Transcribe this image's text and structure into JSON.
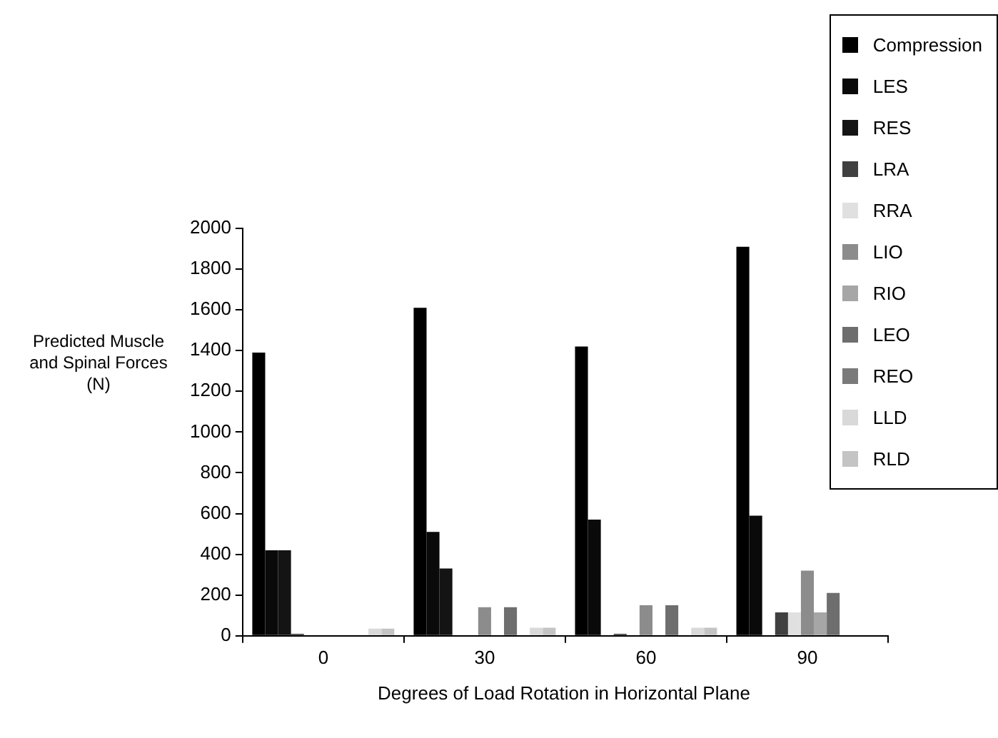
{
  "chart_data": {
    "type": "bar",
    "xlabel": "Degrees of Load Rotation in Horizontal Plane",
    "ylabel": "Predicted Muscle and Spinal Forces (N)",
    "categories": [
      "0",
      "30",
      "60",
      "90"
    ],
    "ylim": [
      0,
      2000
    ],
    "yticks": [
      0,
      200,
      400,
      600,
      800,
      1000,
      1200,
      1400,
      1600,
      1800,
      2000
    ],
    "legend": "top right",
    "series": [
      {
        "name": "Compression",
        "color": "#000000",
        "values": [
          1390,
          1610,
          1420,
          1910
        ]
      },
      {
        "name": "LES",
        "color": "#0a0a0a",
        "values": [
          420,
          510,
          570,
          590
        ]
      },
      {
        "name": "RES",
        "color": "#141414",
        "values": [
          420,
          330,
          0,
          0
        ]
      },
      {
        "name": "LRA",
        "color": "#404040",
        "values": [
          10,
          0,
          10,
          115
        ]
      },
      {
        "name": "RRA",
        "color": "#e0e0e0",
        "values": [
          0,
          0,
          0,
          115
        ]
      },
      {
        "name": "LIO",
        "color": "#8c8c8c",
        "values": [
          0,
          140,
          150,
          320
        ]
      },
      {
        "name": "RIO",
        "color": "#a6a6a6",
        "values": [
          0,
          0,
          0,
          115
        ]
      },
      {
        "name": "LEO",
        "color": "#6e6e6e",
        "values": [
          0,
          140,
          150,
          210
        ]
      },
      {
        "name": "REO",
        "color": "#7a7a7a",
        "values": [
          0,
          0,
          0,
          0
        ]
      },
      {
        "name": "LLD",
        "color": "#d9d9d9",
        "values": [
          35,
          40,
          40,
          0
        ]
      },
      {
        "name": "RLD",
        "color": "#c4c4c4",
        "values": [
          35,
          40,
          40,
          0
        ]
      }
    ]
  }
}
